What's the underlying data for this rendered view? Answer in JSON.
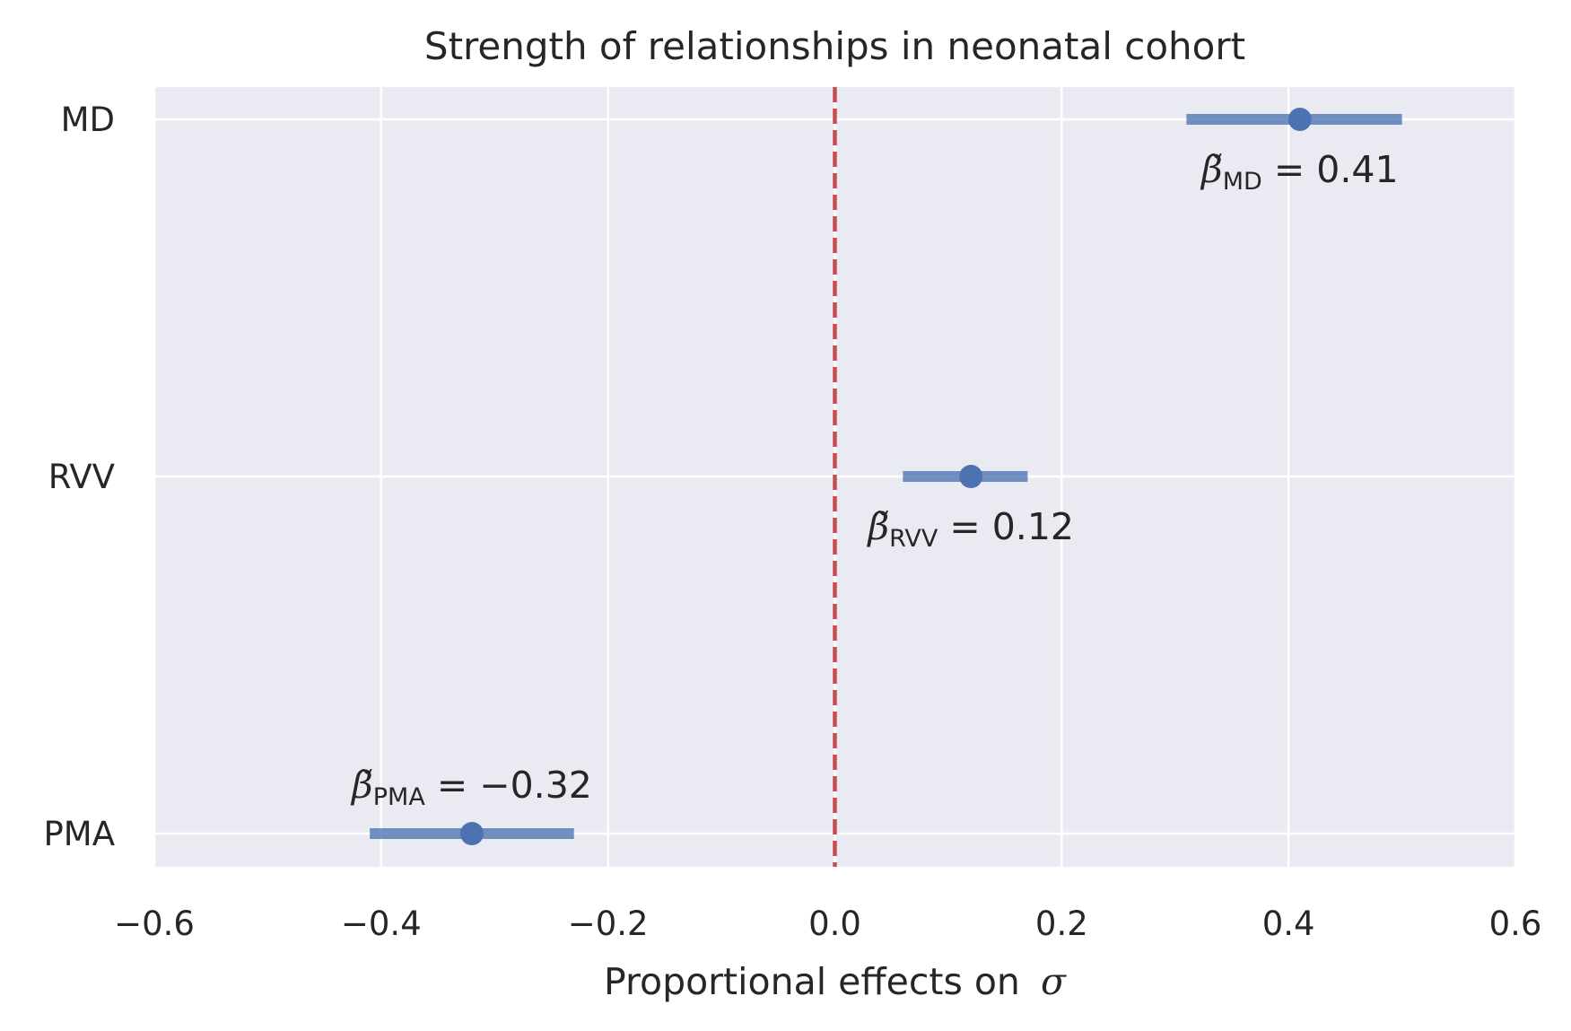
{
  "chart_data": {
    "type": "scatter",
    "subtype": "forest-plot-with-error-bars",
    "title": "Strength of relationships in neonatal cohort",
    "xlabel": "Proportional effects on",
    "xlabel_symbol": "σ",
    "ylabel": "",
    "xlim": [
      -0.6,
      0.6
    ],
    "xticks": [
      -0.6,
      -0.4,
      -0.2,
      0.0,
      0.2,
      0.4,
      0.6
    ],
    "xtick_labels": [
      "−0.6",
      "−0.4",
      "−0.2",
      "0.0",
      "0.2",
      "0.4",
      "0.6"
    ],
    "categories": [
      "MD",
      "RVV",
      "PMA"
    ],
    "grid": true,
    "background": "#eaeaf2",
    "marker_color": "#4c72b0",
    "reference_line": {
      "x": 0.0,
      "style": "dashed",
      "color": "#c44e52"
    },
    "points": [
      {
        "label": "MD",
        "estimate": 0.41,
        "ci": [
          0.31,
          0.5
        ],
        "annotation": {
          "beta": "β̃",
          "sub": "MD",
          "text": " = 0.41",
          "placement": "below"
        }
      },
      {
        "label": "RVV",
        "estimate": 0.12,
        "ci": [
          0.06,
          0.17
        ],
        "annotation": {
          "beta": "β̃",
          "sub": "RVV",
          "text": " = 0.12",
          "placement": "below"
        }
      },
      {
        "label": "PMA",
        "estimate": -0.32,
        "ci": [
          -0.41,
          -0.23
        ],
        "annotation": {
          "beta": "β̃",
          "sub": "PMA",
          "text": " = −0.32",
          "placement": "above"
        }
      }
    ]
  }
}
